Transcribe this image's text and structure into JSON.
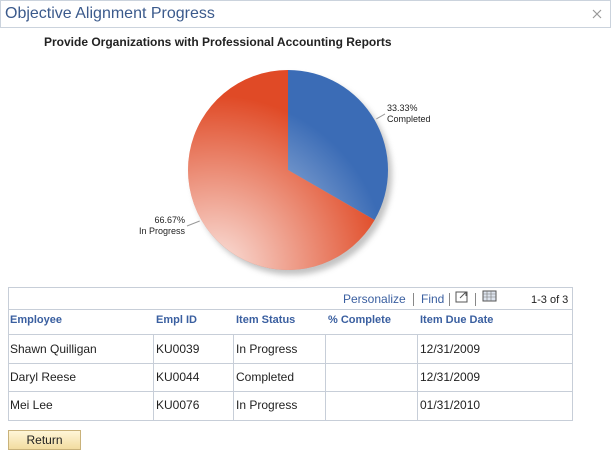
{
  "header": {
    "title": "Objective Alignment Progress"
  },
  "chart_data": {
    "type": "pie",
    "title": "Provide Organizations with Professional Accounting Reports",
    "categories": [
      "Completed",
      "In Progress"
    ],
    "values": [
      33.33,
      66.67
    ],
    "value_labels": [
      "33.33%",
      "66.67%"
    ],
    "colors": [
      "#3b6cb6",
      "#e04a26"
    ]
  },
  "grid": {
    "toolbar": {
      "personalize": "Personalize",
      "find": "Find",
      "count": "1-3 of 3"
    },
    "columns": [
      "Employee",
      "Empl ID",
      "Item Status",
      "% Complete",
      "Item Due Date"
    ],
    "rows": [
      {
        "employee": "Shawn Quilligan",
        "empl_id": "KU0039",
        "item_status": "In Progress",
        "item_due_date": "12/31/2009"
      },
      {
        "employee": "Daryl Reese",
        "empl_id": "KU0044",
        "item_status": "Completed",
        "item_due_date": "12/31/2009"
      },
      {
        "employee": "Mei Lee",
        "empl_id": "KU0076",
        "item_status": "In Progress",
        "item_due_date": "01/31/2010"
      }
    ]
  },
  "button": {
    "label": "Return"
  }
}
